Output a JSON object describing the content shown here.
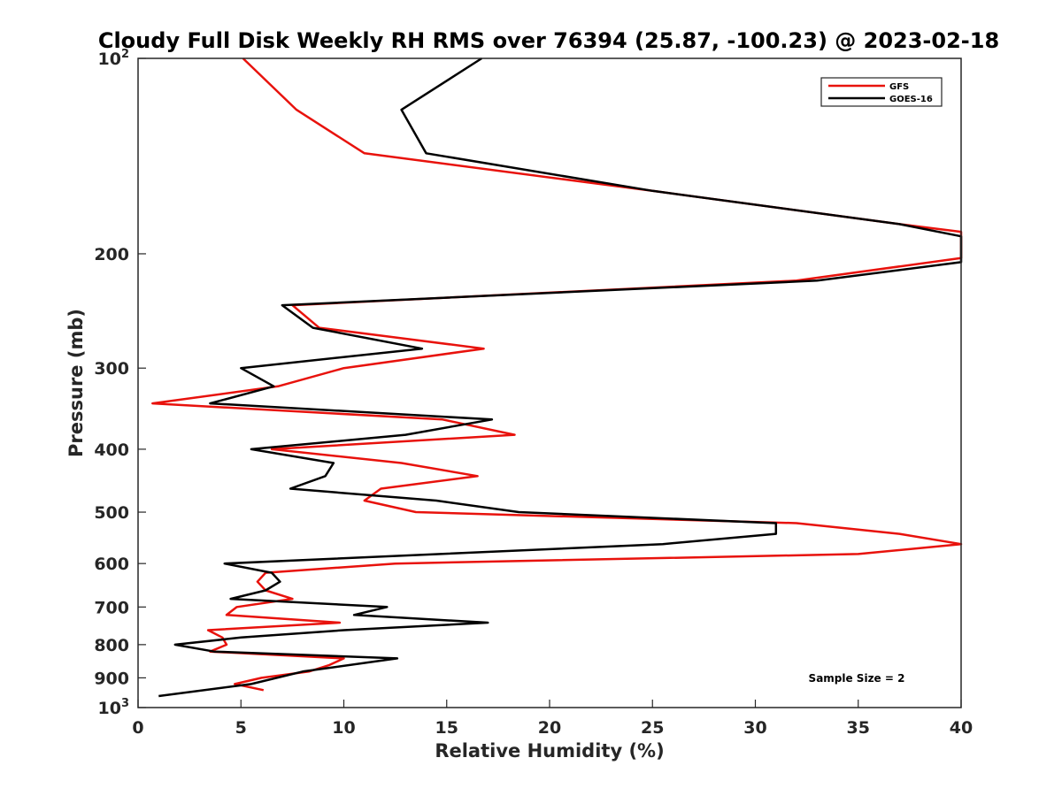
{
  "chart_data": {
    "type": "line",
    "title": "Cloudy Full Disk Weekly RH RMS over 76394 (25.87, -100.23) @ 2023-02-18",
    "xlabel": "Relative Humidity (%)",
    "ylabel": "Pressure (mb)",
    "xlim": [
      0,
      40
    ],
    "ylim": [
      100,
      1000
    ],
    "y_scale": "log",
    "y_reversed": true,
    "x_ticks": [
      0,
      5,
      10,
      15,
      20,
      25,
      30,
      35,
      40
    ],
    "y_ticks": [
      {
        "value": 100,
        "label": "10",
        "sup": "2"
      },
      {
        "value": 200,
        "label": "200"
      },
      {
        "value": 300,
        "label": "300"
      },
      {
        "value": 400,
        "label": "400"
      },
      {
        "value": 500,
        "label": "500"
      },
      {
        "value": 600,
        "label": "600"
      },
      {
        "value": 700,
        "label": "700"
      },
      {
        "value": 800,
        "label": "800"
      },
      {
        "value": 900,
        "label": "900"
      },
      {
        "value": 1000,
        "label": "10",
        "sup": "3"
      }
    ],
    "grid": false,
    "legend_position": "top-right",
    "annotation": "Sample Size = 2",
    "series": [
      {
        "name": "GFS",
        "color": "#e8120c",
        "points": [
          [
            5.1,
            100
          ],
          [
            7.7,
            120
          ],
          [
            11.0,
            140
          ],
          [
            25.0,
            160
          ],
          [
            37.0,
            180
          ],
          [
            40.0,
            185
          ],
          [
            40.0,
            203
          ],
          [
            32.0,
            220
          ],
          [
            7.5,
            240
          ],
          [
            8.8,
            260
          ],
          [
            16.8,
            280
          ],
          [
            10.0,
            300
          ],
          [
            6.8,
            320
          ],
          [
            0.7,
            340
          ],
          [
            14.8,
            360
          ],
          [
            18.3,
            380
          ],
          [
            6.5,
            400
          ],
          [
            12.8,
            420
          ],
          [
            16.5,
            440
          ],
          [
            11.8,
            460
          ],
          [
            11.0,
            480
          ],
          [
            13.5,
            500
          ],
          [
            32.0,
            520
          ],
          [
            37.0,
            540
          ],
          [
            40.0,
            560
          ],
          [
            35.0,
            580
          ],
          [
            12.5,
            600
          ],
          [
            6.2,
            620
          ],
          [
            5.8,
            640
          ],
          [
            6.2,
            660
          ],
          [
            7.5,
            680
          ],
          [
            4.8,
            700
          ],
          [
            4.3,
            720
          ],
          [
            9.8,
            740
          ],
          [
            3.4,
            760
          ],
          [
            4.1,
            780
          ],
          [
            4.3,
            800
          ],
          [
            3.5,
            820
          ],
          [
            10.0,
            840
          ],
          [
            9.3,
            860
          ],
          [
            8.3,
            880
          ],
          [
            6.0,
            900
          ],
          [
            4.7,
            920
          ],
          [
            6.1,
            940
          ]
        ]
      },
      {
        "name": "GOES-16",
        "color": "#000000",
        "points": [
          [
            16.7,
            100
          ],
          [
            12.8,
            120
          ],
          [
            14.0,
            140
          ],
          [
            25.0,
            160
          ],
          [
            37.0,
            180
          ],
          [
            40.0,
            188
          ],
          [
            40.0,
            206
          ],
          [
            33.0,
            220
          ],
          [
            7.0,
            240
          ],
          [
            8.5,
            260
          ],
          [
            13.8,
            280
          ],
          [
            5.0,
            300
          ],
          [
            6.6,
            320
          ],
          [
            3.5,
            340
          ],
          [
            17.2,
            360
          ],
          [
            13.0,
            380
          ],
          [
            5.5,
            400
          ],
          [
            9.5,
            420
          ],
          [
            9.1,
            440
          ],
          [
            7.4,
            460
          ],
          [
            14.5,
            480
          ],
          [
            18.5,
            500
          ],
          [
            31.0,
            520
          ],
          [
            31.0,
            540
          ],
          [
            25.5,
            560
          ],
          [
            4.2,
            600
          ],
          [
            6.5,
            620
          ],
          [
            6.9,
            640
          ],
          [
            6.2,
            660
          ],
          [
            4.5,
            680
          ],
          [
            12.1,
            700
          ],
          [
            10.5,
            720
          ],
          [
            17.0,
            740
          ],
          [
            10.0,
            760
          ],
          [
            5.0,
            780
          ],
          [
            1.8,
            800
          ],
          [
            3.7,
            820
          ],
          [
            12.6,
            840
          ],
          [
            8.0,
            880
          ],
          [
            5.5,
            920
          ],
          [
            1.0,
            960
          ]
        ]
      }
    ]
  }
}
